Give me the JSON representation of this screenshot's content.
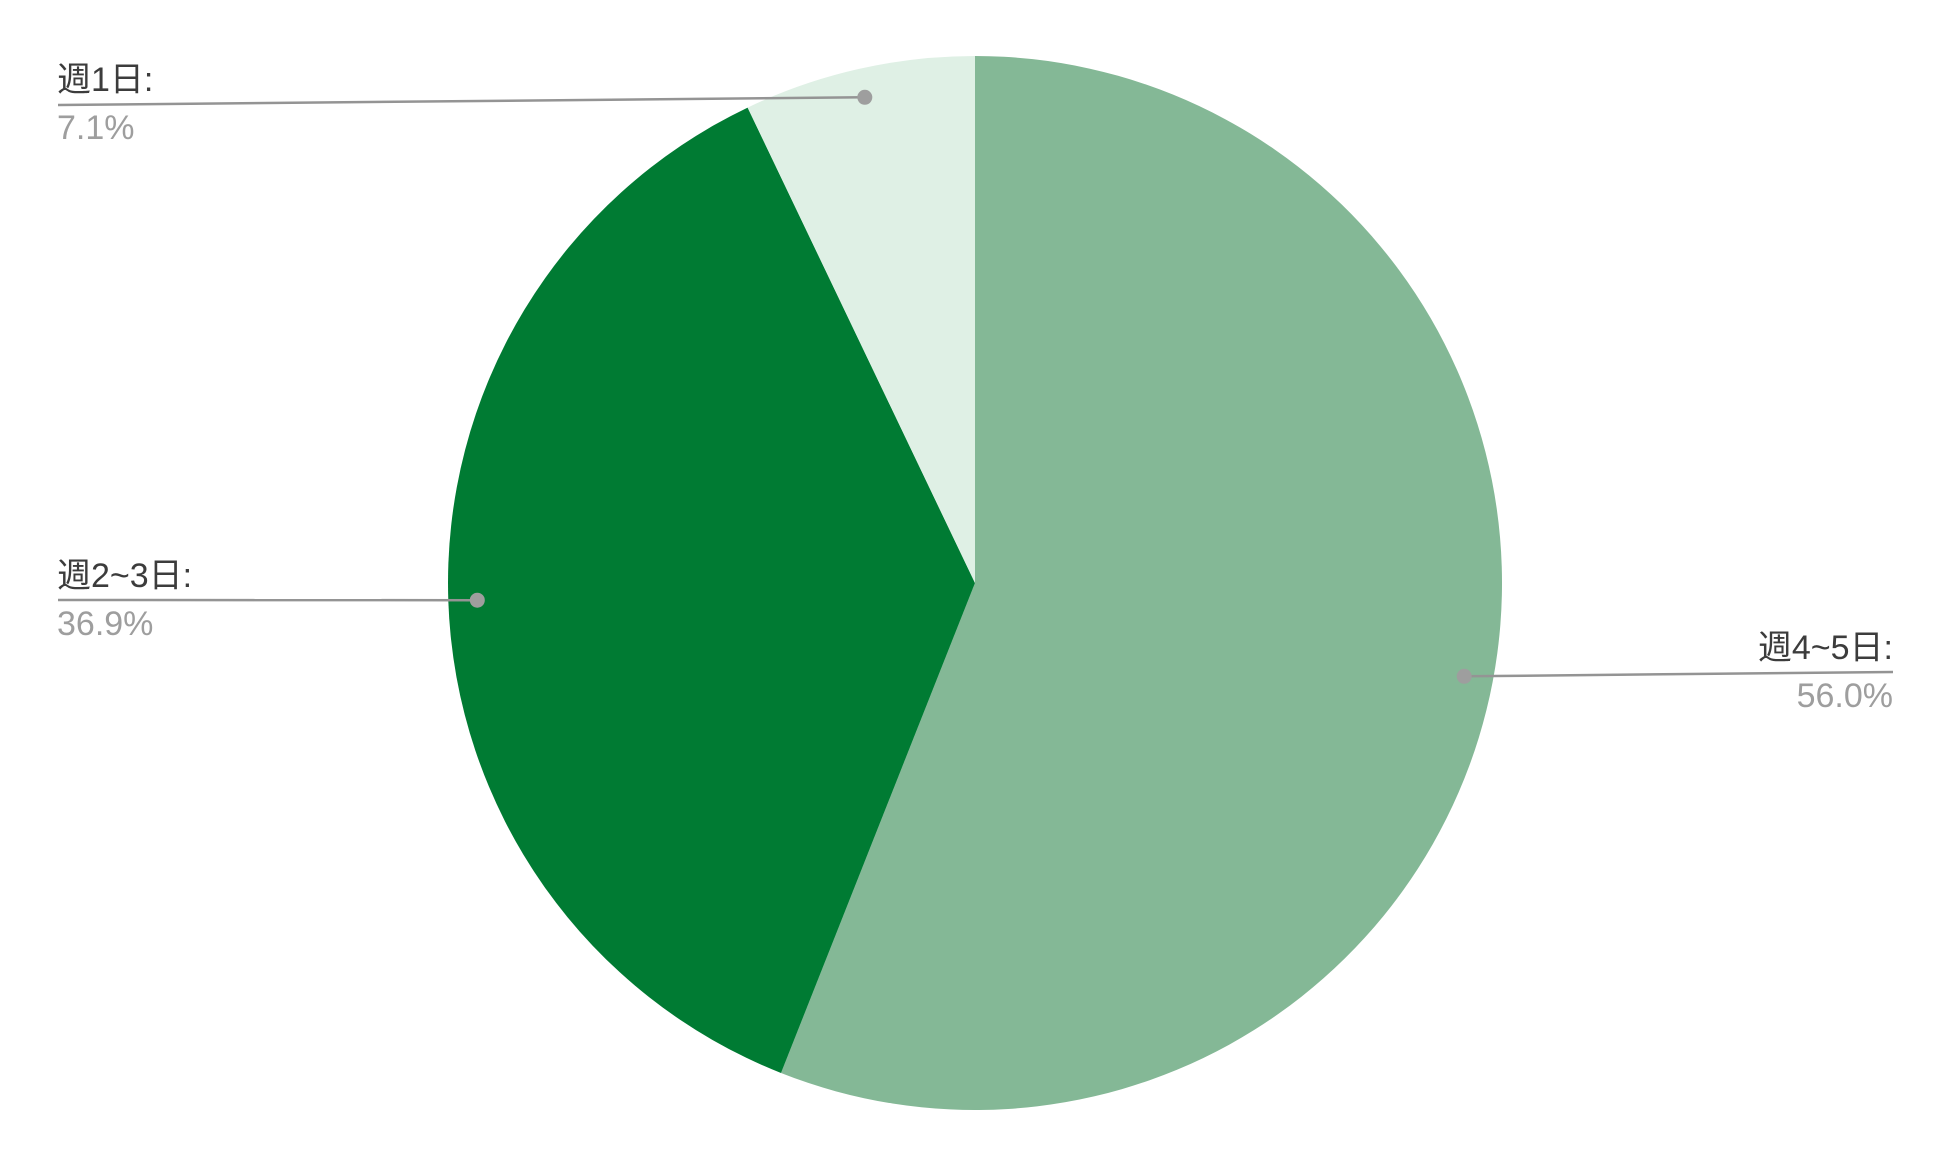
{
  "chart_data": {
    "type": "pie",
    "title": "",
    "unit": "%",
    "categories": [
      "週4~5日",
      "週2~3日",
      "週1日"
    ],
    "values": [
      56.0,
      36.9,
      7.1
    ],
    "display_values": [
      "56.0%",
      "36.9%",
      "7.1%"
    ],
    "colors": [
      "#84B896",
      "#007B33",
      "#DFF0E5"
    ],
    "start_angle_deg": 0,
    "direction": "clockwise",
    "legend": "none",
    "label_style": "callout-leader-lines"
  },
  "callouts": [
    {
      "name": "週1日:",
      "pct": "7.1%"
    },
    {
      "name": "週2~3日:",
      "pct": "36.9%"
    },
    {
      "name": "週4~5日:",
      "pct": "56.0%"
    }
  ],
  "palette": {
    "slice_large": "#84B896",
    "slice_medium": "#007B33",
    "slice_small": "#DFF0E5",
    "label_text": "#3C3C3C",
    "percent_text": "#9E9E9E",
    "leader_line": "#949494",
    "leader_dot": "#9E9E9E",
    "background": "#FFFFFF"
  }
}
